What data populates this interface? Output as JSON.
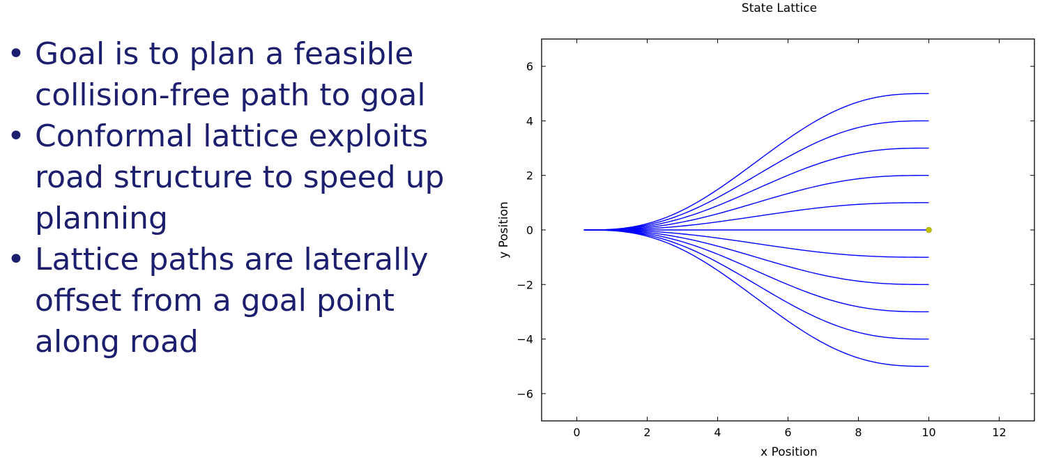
{
  "bullets": [
    "Goal is to plan a feasible collision-free path to goal",
    "Conformal lattice exploits road structure to speed up planning",
    "Lattice paths are laterally offset from a goal point along road"
  ],
  "colors": {
    "text": "#1c1f6e",
    "path": "#0000ff",
    "goal_point": "#bfbf00"
  },
  "chart_data": {
    "type": "line",
    "title": "State Lattice",
    "xlabel": "x Position",
    "ylabel": "y Position",
    "xlim": [
      -1,
      13
    ],
    "ylim": [
      -7,
      7
    ],
    "xticks": [
      0,
      2,
      4,
      6,
      8,
      10,
      12
    ],
    "yticks": [
      6,
      4,
      2,
      0,
      -2,
      -4,
      -6
    ],
    "ytick_labels": [
      "6",
      "4",
      "2",
      "0",
      "−2",
      "−4",
      "−6"
    ],
    "grid": false,
    "start": [
      0.2,
      0
    ],
    "path_end_x": 10,
    "path_end_y": [
      5,
      4,
      3,
      2,
      1,
      0,
      -1,
      -2,
      -3,
      -4,
      -5
    ],
    "goal_point": [
      10,
      0
    ]
  }
}
